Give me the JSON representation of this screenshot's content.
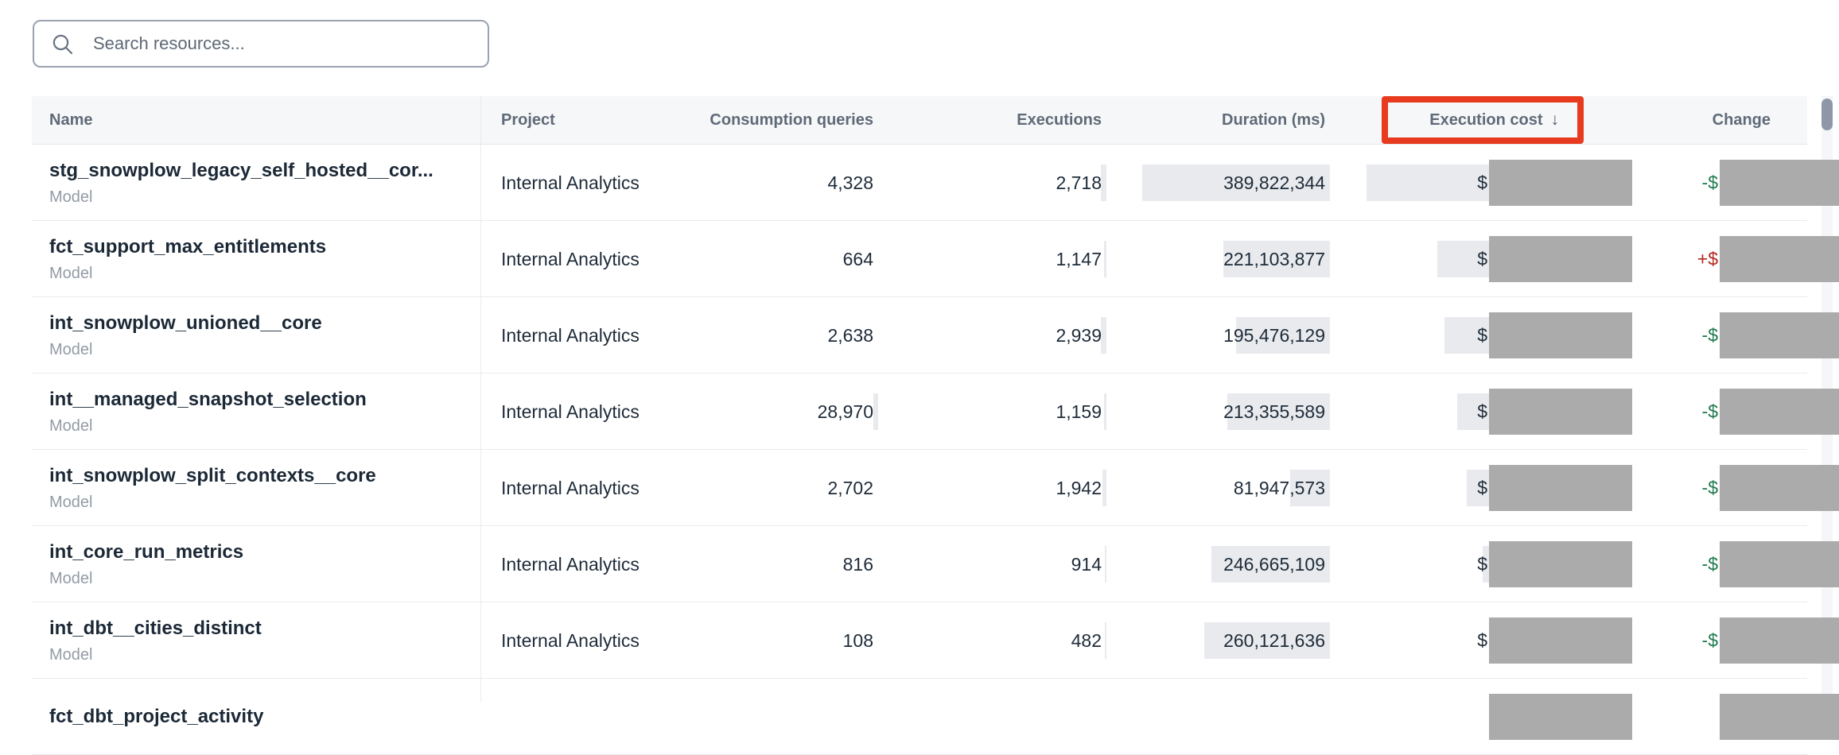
{
  "search": {
    "placeholder": "Search resources..."
  },
  "columns": [
    {
      "id": "name",
      "label": "Name",
      "align": "left"
    },
    {
      "id": "project",
      "label": "Project",
      "align": "left"
    },
    {
      "id": "consumption",
      "label": "Consumption queries",
      "align": "right"
    },
    {
      "id": "executions",
      "label": "Executions",
      "align": "right"
    },
    {
      "id": "duration",
      "label": "Duration (ms)",
      "align": "right"
    },
    {
      "id": "cost",
      "label": "Execution cost",
      "align": "right",
      "sorted": "desc",
      "annotated": true
    },
    {
      "id": "change",
      "label": "Change",
      "align": "right"
    }
  ],
  "sort_arrow_glyph": "↓",
  "annotation": {
    "target": "Execution cost",
    "color": "#e73a1f"
  },
  "redaction_color": "#ababab",
  "change_colors": {
    "decrease_green": "#1f7a4d",
    "increase_red": "#b3271b"
  },
  "rows": [
    {
      "name": "stg_snowplow_legacy_self_hosted__cor...",
      "type": "Model",
      "project": "Internal Analytics",
      "consumption": "4,328",
      "executions": "2,718",
      "duration": "389,822,344",
      "cost_prefix": "$",
      "cost_redacted": true,
      "change_prefix": "-$",
      "change_trend": "decrease",
      "change_redacted": true
    },
    {
      "name": "fct_support_max_entitlements",
      "type": "Model",
      "project": "Internal Analytics",
      "consumption": "664",
      "executions": "1,147",
      "duration": "221,103,877",
      "cost_prefix": "$",
      "cost_redacted": true,
      "change_prefix": "+$",
      "change_trend": "increase",
      "change_redacted": true
    },
    {
      "name": "int_snowplow_unioned__core",
      "type": "Model",
      "project": "Internal Analytics",
      "consumption": "2,638",
      "executions": "2,939",
      "duration": "195,476,129",
      "cost_prefix": "$",
      "cost_redacted": true,
      "change_prefix": "-$",
      "change_trend": "decrease",
      "change_redacted": true
    },
    {
      "name": "int__managed_snapshot_selection",
      "type": "Model",
      "project": "Internal Analytics",
      "consumption": "28,970",
      "executions": "1,159",
      "duration": "213,355,589",
      "cost_prefix": "$",
      "cost_redacted": true,
      "change_prefix": "-$",
      "change_trend": "decrease",
      "change_redacted": true
    },
    {
      "name": "int_snowplow_split_contexts__core",
      "type": "Model",
      "project": "Internal Analytics",
      "consumption": "2,702",
      "executions": "1,942",
      "duration": "81,947,573",
      "cost_prefix": "$",
      "cost_redacted": true,
      "change_prefix": "-$",
      "change_trend": "decrease",
      "change_redacted": true
    },
    {
      "name": "int_core_run_metrics",
      "type": "Model",
      "project": "Internal Analytics",
      "consumption": "816",
      "executions": "914",
      "duration": "246,665,109",
      "cost_prefix": "$",
      "cost_redacted": true,
      "change_prefix": "-$",
      "change_trend": "decrease",
      "change_redacted": true
    },
    {
      "name": "int_dbt__cities_distinct",
      "type": "Model",
      "project": "Internal Analytics",
      "consumption": "108",
      "executions": "482",
      "duration": "260,121,636",
      "cost_prefix": "$",
      "cost_redacted": true,
      "change_prefix": "-$",
      "change_trend": "decrease",
      "change_redacted": true
    },
    {
      "name": "fct_dbt_project_activity",
      "partial": true,
      "cost_redacted": true,
      "change_redacted": true
    }
  ]
}
